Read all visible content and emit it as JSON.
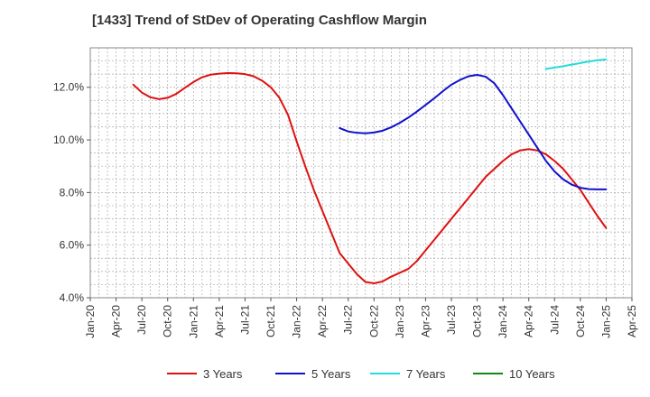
{
  "chart_data": {
    "type": "line",
    "title": "[1433]  Trend of StDev of Operating Cashflow Margin",
    "xlabel": "",
    "ylabel": "",
    "x_tick_labels": [
      "Jan-20",
      "Apr-20",
      "Jul-20",
      "Oct-20",
      "Jan-21",
      "Apr-21",
      "Jul-21",
      "Oct-21",
      "Jan-22",
      "Apr-22",
      "Jul-22",
      "Oct-22",
      "Jan-23",
      "Apr-23",
      "Jul-23",
      "Oct-23",
      "Jan-24",
      "Apr-24",
      "Jul-24",
      "Oct-24",
      "Jan-25",
      "Apr-25"
    ],
    "y_tick_labels": [
      "4.0%",
      "6.0%",
      "8.0%",
      "10.0%",
      "12.0%"
    ],
    "ylim": [
      4.0,
      13.5
    ],
    "grid": true,
    "legend_position": "bottom",
    "series": [
      {
        "name": "3 Years",
        "color": "#dd1111",
        "x": [
          "2020-06",
          "2020-07",
          "2020-08",
          "2020-09",
          "2020-10",
          "2020-11",
          "2020-12",
          "2021-01",
          "2021-02",
          "2021-03",
          "2021-04",
          "2021-05",
          "2021-06",
          "2021-07",
          "2021-08",
          "2021-09",
          "2021-10",
          "2021-11",
          "2021-12",
          "2022-01",
          "2022-02",
          "2022-03",
          "2022-04",
          "2022-05",
          "2022-06",
          "2022-07",
          "2022-08",
          "2022-09",
          "2022-10",
          "2022-11",
          "2022-12",
          "2023-01",
          "2023-02",
          "2023-03",
          "2023-04",
          "2023-05",
          "2023-06",
          "2023-07",
          "2023-08",
          "2023-09",
          "2023-10",
          "2023-11",
          "2023-12",
          "2024-01",
          "2024-02",
          "2024-03",
          "2024-04",
          "2024-05",
          "2024-06",
          "2024-07",
          "2024-08",
          "2024-09",
          "2024-10",
          "2024-11",
          "2024-12",
          "2025-01"
        ],
        "values": [
          12.1,
          11.8,
          11.62,
          11.55,
          11.6,
          11.75,
          11.98,
          12.2,
          12.38,
          12.48,
          12.52,
          12.54,
          12.53,
          12.5,
          12.42,
          12.25,
          12.0,
          11.6,
          10.95,
          9.95,
          9.0,
          8.1,
          7.3,
          6.5,
          5.7,
          5.3,
          4.9,
          4.6,
          4.55,
          4.62,
          4.8,
          4.95,
          5.1,
          5.4,
          5.8,
          6.2,
          6.6,
          7.0,
          7.4,
          7.8,
          8.2,
          8.6,
          8.9,
          9.2,
          9.45,
          9.6,
          9.65,
          9.6,
          9.45,
          9.2,
          8.9,
          8.5,
          8.1,
          7.6,
          7.1,
          6.65
        ]
      },
      {
        "name": "5 Years",
        "color": "#1111cc",
        "x": [
          "2022-06",
          "2022-07",
          "2022-08",
          "2022-09",
          "2022-10",
          "2022-11",
          "2022-12",
          "2023-01",
          "2023-02",
          "2023-03",
          "2023-04",
          "2023-05",
          "2023-06",
          "2023-07",
          "2023-08",
          "2023-09",
          "2023-10",
          "2023-11",
          "2023-12",
          "2024-01",
          "2024-02",
          "2024-03",
          "2024-04",
          "2024-05",
          "2024-06",
          "2024-07",
          "2024-08",
          "2024-09",
          "2024-10",
          "2024-11",
          "2024-12",
          "2025-01"
        ],
        "values": [
          10.45,
          10.32,
          10.27,
          10.25,
          10.28,
          10.35,
          10.48,
          10.65,
          10.85,
          11.08,
          11.33,
          11.58,
          11.85,
          12.1,
          12.28,
          12.42,
          12.47,
          12.4,
          12.15,
          11.7,
          11.2,
          10.7,
          10.2,
          9.7,
          9.2,
          8.8,
          8.5,
          8.3,
          8.18,
          8.13,
          8.12,
          8.12
        ]
      },
      {
        "name": "7 Years",
        "color": "#22dddd",
        "x": [
          "2024-06",
          "2024-07",
          "2024-08",
          "2024-09",
          "2024-10",
          "2024-11",
          "2024-12",
          "2025-01"
        ],
        "values": [
          12.7,
          12.75,
          12.8,
          12.86,
          12.92,
          12.98,
          13.03,
          13.06
        ]
      },
      {
        "name": "10 Years",
        "color": "#118811",
        "x": [],
        "values": []
      }
    ]
  }
}
